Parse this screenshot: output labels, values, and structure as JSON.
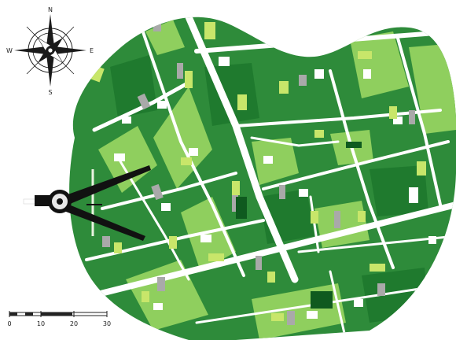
{
  "compass": {
    "north": "N",
    "south": "S",
    "east": "E",
    "west": "W"
  },
  "scale_bar": {
    "ticks": [
      "0",
      "10",
      "20",
      "30"
    ]
  },
  "colors": {
    "block_dark": "#2e8b3a",
    "block_light": "#8fcf5e",
    "block_mid": "#1f7a2e",
    "street": "#ffffff",
    "building_white": "#ffffff",
    "building_gray": "#a9a9a9",
    "building_lime": "#c8e66a",
    "building_dark": "#0f5a1f",
    "compass_ink": "#1a1a1a",
    "pin_ink": "#111111"
  }
}
